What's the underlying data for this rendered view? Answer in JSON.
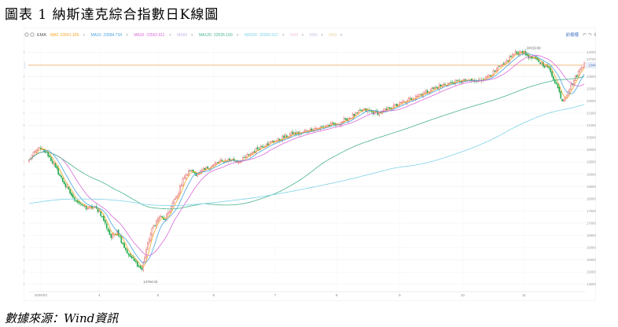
{
  "figure": {
    "title": "圖表 1 納斯達克綜合指數日K線圖",
    "source": "數據來源：Wind資訊"
  },
  "toolbar": {
    "ema": "EMA",
    "legend": [
      {
        "label": "MA5",
        "value": "23541.105",
        "color": "#f5a623"
      },
      {
        "label": "MA10",
        "value": "23584.734",
        "color": "#4aa3df"
      },
      {
        "label": "MA20",
        "value": "23563.911",
        "color": "#d86ad8"
      },
      {
        "label": "MA60",
        "value": "",
        "color": "#c9b6e8"
      },
      {
        "label": "MA120",
        "value": "22535.150",
        "color": "#49b38a"
      },
      {
        "label": "MA250",
        "value": "20305.912",
        "color": "#7fd3e8"
      },
      {
        "label": "MA0",
        "value": "",
        "color": "#f2c6e0"
      },
      {
        "label": "MA0",
        "value": "",
        "color": "#c6cbe8"
      },
      {
        "label": "MA0",
        "value": "",
        "color": "#e8d9a6"
      }
    ],
    "right_label": "前複權",
    "icons": [
      "undo-icon",
      "redo-icon",
      "settings-icon"
    ]
  },
  "chart_data": {
    "type": "candlestick",
    "y_ticks": [
      14500,
      15000,
      15500,
      16000,
      16500,
      17000,
      17500,
      18000,
      18500,
      19000,
      19500,
      20000,
      20500,
      21000,
      21500,
      22000,
      22500,
      23000,
      23500,
      24000
    ],
    "y_tick_labels": [
      "14500.00",
      "15000.00",
      "15500.00",
      "16000.00",
      "16500.00",
      "17000.00",
      "17500.00",
      "18000.00",
      "18500.00",
      "19000.00",
      "19500.00",
      "20000.00",
      "20500.00",
      "21000.00",
      "21500.00",
      "22000.00",
      "22500.00",
      "23000.00",
      "23500.00",
      "24000.00"
    ],
    "ylim": [
      14200,
      24300
    ],
    "x_tick_labels": [
      "2025/03",
      "4",
      "5",
      "6",
      "7",
      "8",
      "9",
      "10",
      "11"
    ],
    "x_tick_index": [
      8,
      48,
      88,
      126,
      168,
      210,
      253,
      296,
      338
    ],
    "n_days": 380,
    "annotations": {
      "high": {
        "label": "24019.99",
        "value": 24019.99,
        "index": 338
      },
      "low": {
        "label": "14784.03",
        "value": 14784.03,
        "index": 77
      }
    },
    "reference_line": {
      "value": 23465.6,
      "label": "23465.60"
    },
    "right_axis_extra": {
      "value": 23700,
      "label": "23700.00"
    },
    "anchors": [
      [
        0,
        19600
      ],
      [
        6,
        20050
      ],
      [
        12,
        19900
      ],
      [
        18,
        19300
      ],
      [
        24,
        18600
      ],
      [
        30,
        18050
      ],
      [
        36,
        17750
      ],
      [
        40,
        17600
      ],
      [
        44,
        17650
      ],
      [
        48,
        17500
      ],
      [
        52,
        17000
      ],
      [
        56,
        16400
      ],
      [
        60,
        16700
      ],
      [
        64,
        16150
      ],
      [
        68,
        15700
      ],
      [
        72,
        15450
      ],
      [
        77,
        15100
      ],
      [
        81,
        16200
      ],
      [
        85,
        16900
      ],
      [
        89,
        17250
      ],
      [
        93,
        17150
      ],
      [
        97,
        17700
      ],
      [
        101,
        18100
      ],
      [
        105,
        18800
      ],
      [
        110,
        19150
      ],
      [
        115,
        19000
      ],
      [
        120,
        19200
      ],
      [
        126,
        19400
      ],
      [
        132,
        19550
      ],
      [
        138,
        19600
      ],
      [
        144,
        19500
      ],
      [
        150,
        19800
      ],
      [
        156,
        20050
      ],
      [
        162,
        20250
      ],
      [
        168,
        20350
      ],
      [
        174,
        20500
      ],
      [
        180,
        20650
      ],
      [
        186,
        20700
      ],
      [
        192,
        20850
      ],
      [
        198,
        20900
      ],
      [
        204,
        21000
      ],
      [
        210,
        21050
      ],
      [
        216,
        21250
      ],
      [
        222,
        21400
      ],
      [
        228,
        21650
      ],
      [
        234,
        21550
      ],
      [
        240,
        21500
      ],
      [
        246,
        21700
      ],
      [
        252,
        21850
      ],
      [
        258,
        22000
      ],
      [
        264,
        22200
      ],
      [
        270,
        22350
      ],
      [
        276,
        22500
      ],
      [
        282,
        22650
      ],
      [
        288,
        22750
      ],
      [
        294,
        22800
      ],
      [
        300,
        22850
      ],
      [
        306,
        22800
      ],
      [
        312,
        23000
      ],
      [
        318,
        23200
      ],
      [
        324,
        23500
      ],
      [
        330,
        23900
      ],
      [
        336,
        24019.99
      ],
      [
        342,
        23800
      ],
      [
        348,
        23600
      ],
      [
        354,
        23400
      ],
      [
        360,
        22700
      ],
      [
        364,
        22000
      ],
      [
        368,
        22400
      ],
      [
        372,
        22850
      ],
      [
        376,
        23300
      ],
      [
        379,
        23540
      ]
    ],
    "ma_series": [
      {
        "name": "MA5",
        "color": "#f5a623",
        "window": 5
      },
      {
        "name": "MA10",
        "color": "#4aa3df",
        "window": 10
      },
      {
        "name": "MA20",
        "color": "#d86ad8",
        "window": 20
      },
      {
        "name": "MA120",
        "color": "#49b38a",
        "window": 120
      },
      {
        "name": "MA250",
        "color": "#7fd3e8",
        "window": 250,
        "start": 17800
      }
    ],
    "up_color": "#e05a5a",
    "down_color": "#1fa84a",
    "grid": true
  }
}
